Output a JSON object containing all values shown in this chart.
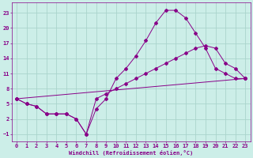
{
  "xlabel": "Windchill (Refroidissement éolien,°C)",
  "bg_color": "#cceee8",
  "grid_color": "#aad4cc",
  "line_color": "#880088",
  "xlim": [
    -0.5,
    23.5
  ],
  "ylim": [
    -2.5,
    25
  ],
  "xticks": [
    0,
    1,
    2,
    3,
    4,
    5,
    6,
    7,
    8,
    9,
    10,
    11,
    12,
    13,
    14,
    15,
    16,
    17,
    18,
    19,
    20,
    21,
    22,
    23
  ],
  "yticks": [
    -1,
    2,
    5,
    8,
    11,
    14,
    17,
    20,
    23
  ],
  "line1_x": [
    0,
    1,
    2,
    3,
    4,
    5,
    6,
    7,
    8,
    9,
    10,
    11,
    12,
    13,
    14,
    15,
    16,
    17,
    18,
    19,
    20,
    21,
    22,
    23
  ],
  "line1_y": [
    6,
    5,
    4.5,
    3,
    3,
    3,
    2,
    -1,
    4,
    6,
    10,
    12,
    14.5,
    17.5,
    21,
    23.5,
    23.5,
    22,
    19,
    16,
    12,
    11,
    10,
    10
  ],
  "line2_x": [
    0,
    1,
    2,
    3,
    4,
    5,
    6,
    7,
    8,
    9,
    10,
    11,
    12,
    13,
    14,
    15,
    16,
    17,
    18,
    19,
    20,
    21,
    22,
    23
  ],
  "line2_y": [
    6,
    5,
    4.5,
    3,
    3,
    3,
    2,
    -1,
    6,
    7,
    8,
    9,
    10,
    11,
    12,
    13,
    14,
    15,
    16,
    16.5,
    16,
    13,
    12,
    10
  ],
  "line3_x": [
    0,
    23
  ],
  "line3_y": [
    6,
    10
  ]
}
